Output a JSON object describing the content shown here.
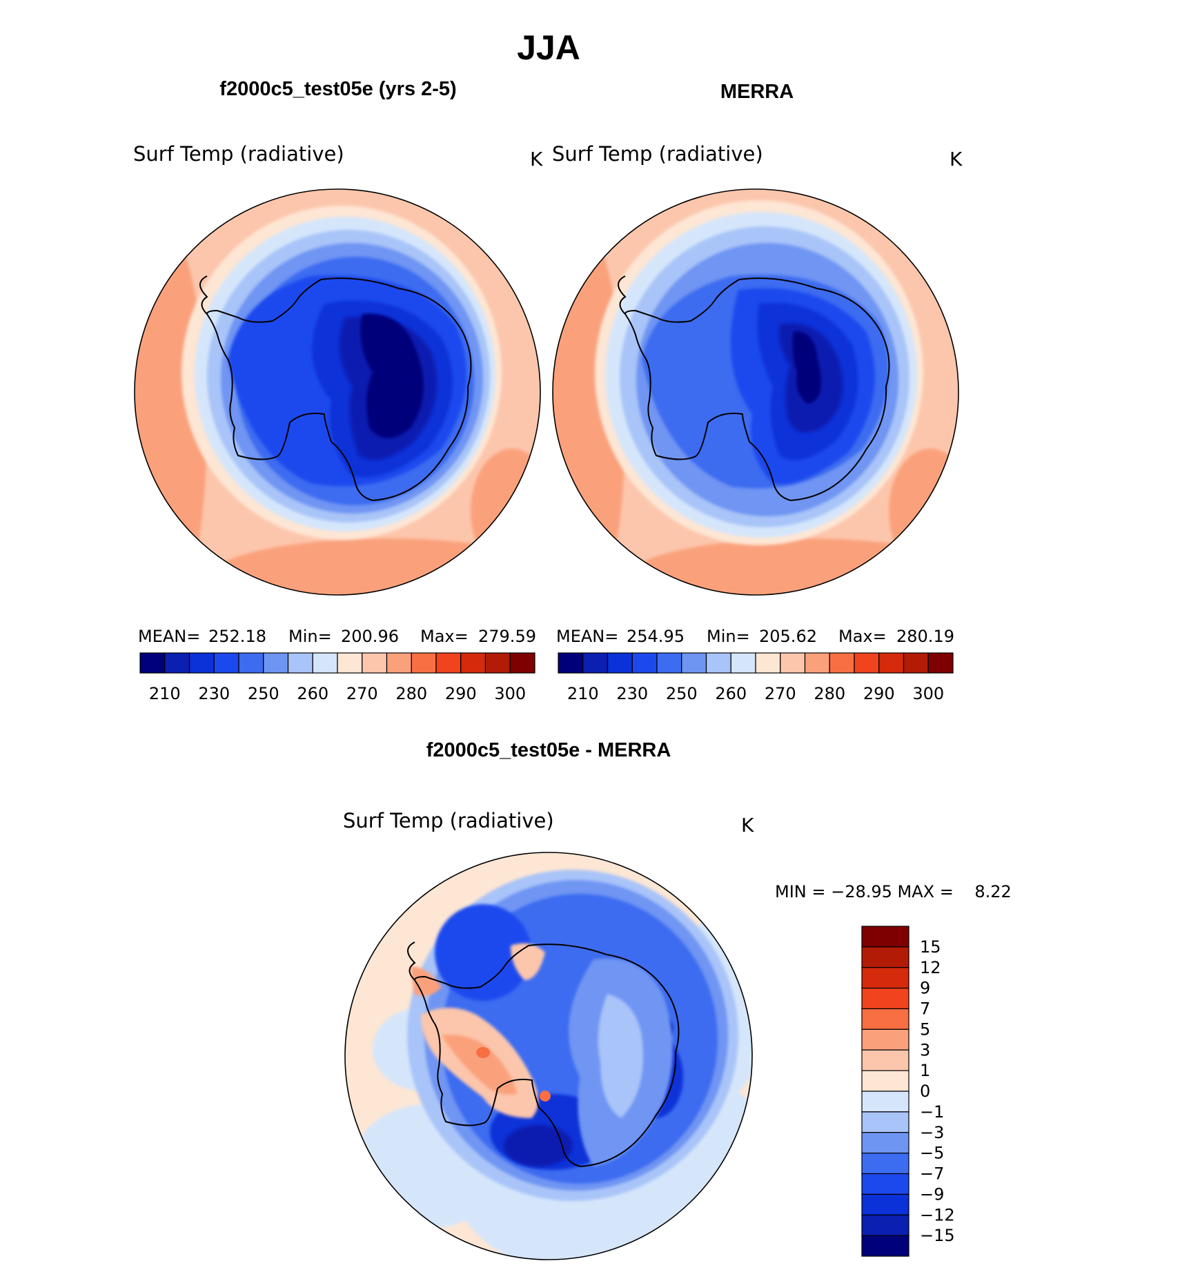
{
  "main_title": "JJA",
  "panels": [
    {
      "title": "f2000c5_test05e (yrs 2-5)",
      "variable": "Surf Temp (radiative)",
      "units": "K",
      "stats": {
        "mean_label": "MEAN=",
        "mean": "252.18",
        "min_label": "Min=",
        "min": "200.96",
        "max_label": "Max=",
        "max": "279.59"
      }
    },
    {
      "title": "MERRA",
      "variable": "Surf Temp (radiative)",
      "units": "K",
      "stats": {
        "mean_label": "MEAN=",
        "mean": "254.95",
        "min_label": "Min=",
        "min": "205.62",
        "max_label": "Max=",
        "max": "280.19"
      }
    }
  ],
  "field_colorbar": {
    "ticks": [
      "210",
      "230",
      "250",
      "260",
      "270",
      "280",
      "290",
      "300"
    ],
    "colors": [
      "#00007a",
      "#0b1fb0",
      "#0a32d8",
      "#1c49ee",
      "#3c6cf0",
      "#6f95f3",
      "#a9c4f8",
      "#d5e6fb",
      "#fde6d4",
      "#fcc6ac",
      "#faa17c",
      "#f76f42",
      "#f0431e",
      "#d52a0b",
      "#b21b06",
      "#7f0000"
    ]
  },
  "diff_panel": {
    "title": "f2000c5_test05e - MERRA",
    "variable": "Surf Temp (radiative)",
    "units": "K",
    "stats_text": "MIN = −28.95 MAX =    8.22"
  },
  "diff_colorbar": {
    "ticks": [
      "15",
      "12",
      "9",
      "7",
      "5",
      "3",
      "1",
      "0",
      "−1",
      "−3",
      "−5",
      "−7",
      "−9",
      "−12",
      "−15"
    ],
    "colors": [
      "#7f0000",
      "#b21b06",
      "#d52a0b",
      "#f0431e",
      "#f76f42",
      "#faa17c",
      "#fcc6ac",
      "#fde6d4",
      "#d5e6fb",
      "#a9c4f8",
      "#6f95f3",
      "#3c6cf0",
      "#1c49ee",
      "#0a32d8",
      "#0b1fb0",
      "#00007a"
    ]
  }
}
